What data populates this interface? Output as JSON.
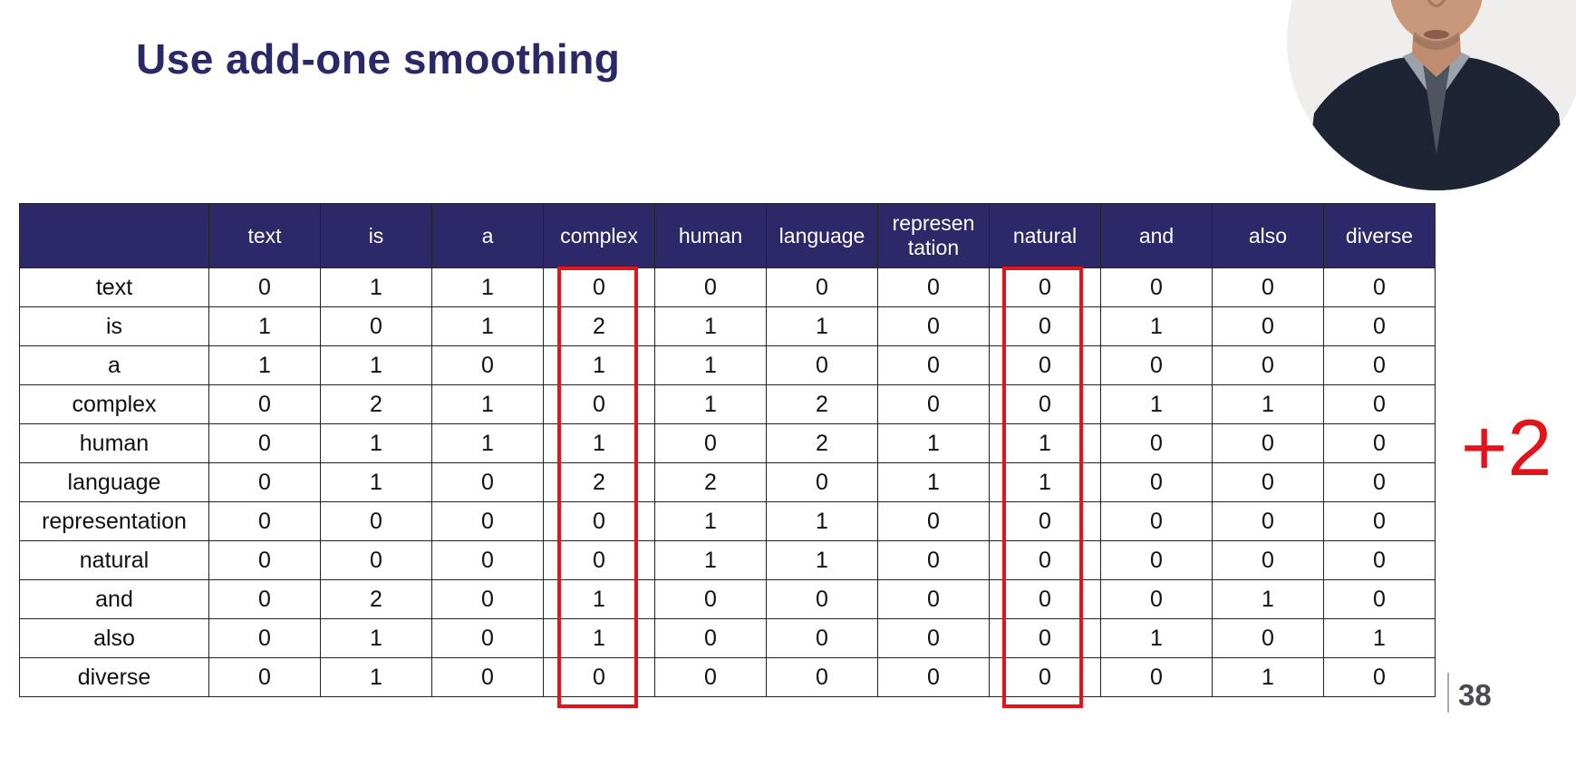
{
  "slide": {
    "title": "Use add-one smoothing",
    "annotation": "+2",
    "page_number": "38"
  },
  "table": {
    "columns": [
      "text",
      "is",
      "a",
      "complex",
      "human",
      "language",
      "represen tation",
      "natural",
      "and",
      "also",
      "diverse"
    ],
    "rows": [
      {
        "label": "text",
        "values": [
          "0",
          "1",
          "1",
          "0",
          "0",
          "0",
          "0",
          "0",
          "0",
          "0",
          "0"
        ]
      },
      {
        "label": "is",
        "values": [
          "1",
          "0",
          "1",
          "2",
          "1",
          "1",
          "0",
          "0",
          "1",
          "0",
          "0"
        ]
      },
      {
        "label": "a",
        "values": [
          "1",
          "1",
          "0",
          "1",
          "1",
          "0",
          "0",
          "0",
          "0",
          "0",
          "0"
        ]
      },
      {
        "label": "complex",
        "values": [
          "0",
          "2",
          "1",
          "0",
          "1",
          "2",
          "0",
          "0",
          "1",
          "1",
          "0"
        ]
      },
      {
        "label": "human",
        "values": [
          "0",
          "1",
          "1",
          "1",
          "0",
          "2",
          "1",
          "1",
          "0",
          "0",
          "0"
        ]
      },
      {
        "label": "language",
        "values": [
          "0",
          "1",
          "0",
          "2",
          "2",
          "0",
          "1",
          "1",
          "0",
          "0",
          "0"
        ]
      },
      {
        "label": "representation",
        "values": [
          "0",
          "0",
          "0",
          "0",
          "1",
          "1",
          "0",
          "0",
          "0",
          "0",
          "0"
        ]
      },
      {
        "label": "natural",
        "values": [
          "0",
          "0",
          "0",
          "0",
          "1",
          "1",
          "0",
          "0",
          "0",
          "0",
          "0"
        ]
      },
      {
        "label": "and",
        "values": [
          "0",
          "2",
          "0",
          "1",
          "0",
          "0",
          "0",
          "0",
          "0",
          "1",
          "0"
        ]
      },
      {
        "label": "also",
        "values": [
          "0",
          "1",
          "0",
          "1",
          "0",
          "0",
          "0",
          "0",
          "1",
          "0",
          "1"
        ]
      },
      {
        "label": "diverse",
        "values": [
          "0",
          "1",
          "0",
          "0",
          "0",
          "0",
          "0",
          "0",
          "0",
          "1",
          "0"
        ]
      }
    ],
    "highlighted_columns": [
      "complex",
      "natural"
    ]
  },
  "colors": {
    "title": "#2b2867",
    "header_bg": "#2d2868",
    "highlight": "#e2141b"
  }
}
